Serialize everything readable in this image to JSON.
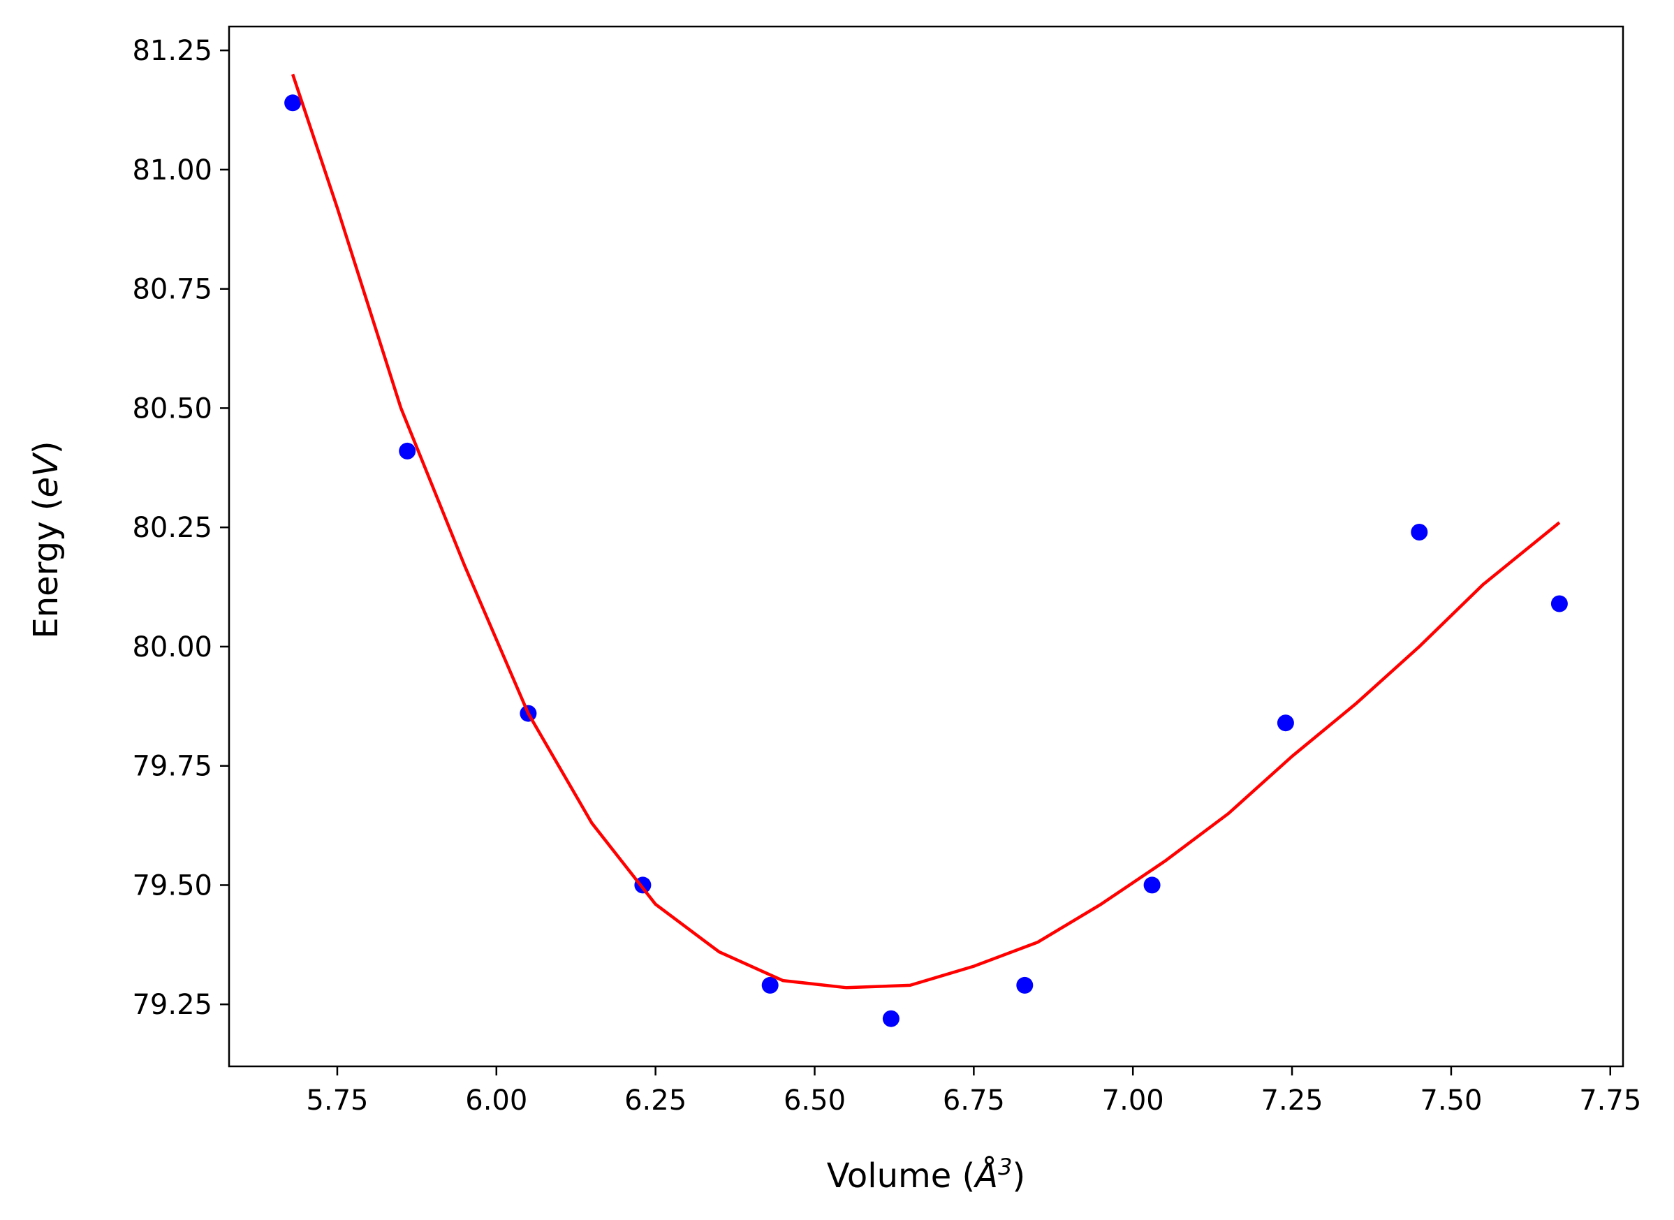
{
  "chart_data": {
    "type": "scatter",
    "xlabel": "Volume (Å3)",
    "xlabel_parts": {
      "prefix": "Volume (",
      "symbol": "Å",
      "exponent": "3",
      "suffix": ")"
    },
    "ylabel": "Energy (eV)",
    "ylabel_parts": {
      "prefix": "Energy (",
      "unit": "eV",
      "suffix": ")"
    },
    "xlim": [
      5.58,
      7.77
    ],
    "ylim": [
      79.12,
      81.3
    ],
    "x_ticks": [
      5.75,
      6.0,
      6.25,
      6.5,
      6.75,
      7.0,
      7.25,
      7.5,
      7.75
    ],
    "x_tick_labels": [
      "5.75",
      "6.00",
      "6.25",
      "6.50",
      "6.75",
      "7.00",
      "7.25",
      "7.50",
      "7.75"
    ],
    "y_ticks": [
      79.25,
      79.5,
      79.75,
      80.0,
      80.25,
      80.5,
      80.75,
      81.0,
      81.25
    ],
    "y_tick_labels": [
      "79.25",
      "79.50",
      "79.75",
      "80.00",
      "80.25",
      "80.50",
      "80.75",
      "81.00",
      "81.25"
    ],
    "grid": false,
    "series": [
      {
        "kind": "points",
        "color": "#0000ff",
        "points": [
          {
            "x": 5.68,
            "y": 81.14
          },
          {
            "x": 5.86,
            "y": 80.41
          },
          {
            "x": 6.05,
            "y": 79.86
          },
          {
            "x": 6.23,
            "y": 79.5
          },
          {
            "x": 6.43,
            "y": 79.29
          },
          {
            "x": 6.62,
            "y": 79.22
          },
          {
            "x": 6.83,
            "y": 79.29
          },
          {
            "x": 7.03,
            "y": 79.5
          },
          {
            "x": 7.24,
            "y": 79.84
          },
          {
            "x": 7.45,
            "y": 80.24
          },
          {
            "x": 7.67,
            "y": 80.09
          }
        ]
      },
      {
        "kind": "fit-curve",
        "color": "#ff0000",
        "points": [
          {
            "x": 5.68,
            "y": 81.2
          },
          {
            "x": 5.75,
            "y": 80.92
          },
          {
            "x": 5.85,
            "y": 80.5
          },
          {
            "x": 5.95,
            "y": 80.17
          },
          {
            "x": 6.05,
            "y": 79.86
          },
          {
            "x": 6.15,
            "y": 79.63
          },
          {
            "x": 6.25,
            "y": 79.46
          },
          {
            "x": 6.35,
            "y": 79.36
          },
          {
            "x": 6.45,
            "y": 79.3
          },
          {
            "x": 6.55,
            "y": 79.285
          },
          {
            "x": 6.65,
            "y": 79.29
          },
          {
            "x": 6.75,
            "y": 79.33
          },
          {
            "x": 6.85,
            "y": 79.38
          },
          {
            "x": 6.95,
            "y": 79.46
          },
          {
            "x": 7.05,
            "y": 79.55
          },
          {
            "x": 7.15,
            "y": 79.65
          },
          {
            "x": 7.25,
            "y": 79.77
          },
          {
            "x": 7.35,
            "y": 79.88
          },
          {
            "x": 7.45,
            "y": 80.0
          },
          {
            "x": 7.55,
            "y": 80.13
          },
          {
            "x": 7.67,
            "y": 80.26
          }
        ]
      }
    ]
  }
}
